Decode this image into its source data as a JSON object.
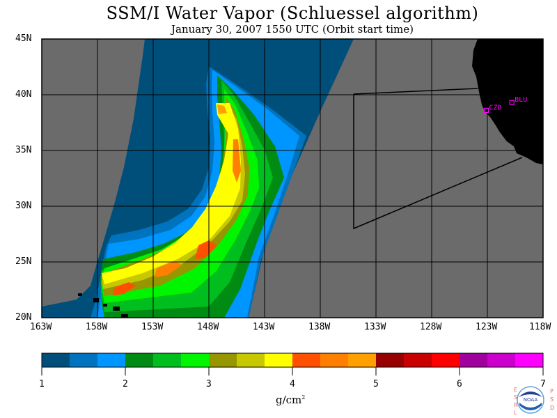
{
  "header": {
    "title": "SSM/I Water Vapor (Schluessel algorithm)",
    "subtitle": "January 30, 2007  1550 UTC  (Orbit start time)"
  },
  "map": {
    "lon_range": [
      -163,
      -118
    ],
    "lat_range": [
      20,
      45
    ],
    "lat_labels": [
      "45N",
      "40N",
      "35N",
      "30N",
      "25N",
      "20N"
    ],
    "lat_values": [
      45,
      40,
      35,
      30,
      25,
      20
    ],
    "lon_labels": [
      "163W",
      "158W",
      "153W",
      "148W",
      "143W",
      "138W",
      "133W",
      "128W",
      "123W",
      "118W"
    ],
    "lon_values": [
      -163,
      -158,
      -153,
      -148,
      -143,
      -138,
      -133,
      -128,
      -123,
      -118
    ],
    "stations": [
      {
        "name": "CZD",
        "lon": -123.1,
        "lat": 38.6
      },
      {
        "name": "BLU",
        "lon": -120.8,
        "lat": 39.3
      }
    ],
    "colors": {
      "no_data": "#6b6b6b",
      "land": "#000000",
      "station": "#ff00ff",
      "grid": "#000000"
    }
  },
  "colorbar": {
    "unit": "g/cm",
    "unit_sup": "2",
    "tick_labels": [
      "1",
      "2",
      "3",
      "4",
      "5",
      "6",
      "7"
    ],
    "min": 1,
    "max": 7,
    "colors": [
      "#004f7a",
      "#0073bf",
      "#0096ff",
      "#008b13",
      "#00be1d",
      "#00f500",
      "#969600",
      "#c8c800",
      "#ffff00",
      "#ff4f00",
      "#ff7f00",
      "#ffa000",
      "#960000",
      "#c80000",
      "#ff0000",
      "#a0009c",
      "#cc00cc",
      "#ff00ff"
    ]
  },
  "logo": {
    "center_text": "NOAA",
    "left_letters": [
      "E",
      "S",
      "R",
      "L"
    ],
    "right_letters": [
      "P",
      "S",
      "D"
    ]
  }
}
